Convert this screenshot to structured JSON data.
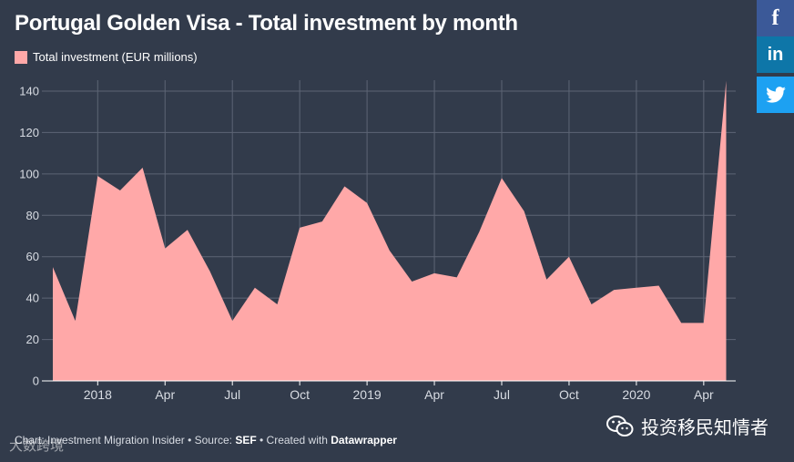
{
  "colors": {
    "background": "#323b4b",
    "fill": "#ffa8a8",
    "grid": "#5d6575",
    "axis_text": "#d8dce3"
  },
  "chart_data": {
    "type": "area",
    "title": "Portugal Golden Visa - Total investment by month",
    "legend": [
      "Total investment (EUR millions)"
    ],
    "xlabel": "",
    "ylabel": "",
    "ylim": [
      0,
      140
    ],
    "yticks": [
      0,
      20,
      40,
      60,
      80,
      100,
      120,
      140
    ],
    "xticks": [
      {
        "index": 2,
        "label": "2018"
      },
      {
        "index": 5,
        "label": "Apr"
      },
      {
        "index": 8,
        "label": "Jul"
      },
      {
        "index": 11,
        "label": "Oct"
      },
      {
        "index": 14,
        "label": "2019"
      },
      {
        "index": 17,
        "label": "Apr"
      },
      {
        "index": 20,
        "label": "Jul"
      },
      {
        "index": 23,
        "label": "Oct"
      },
      {
        "index": 26,
        "label": "2020"
      },
      {
        "index": 29,
        "label": "Apr"
      }
    ],
    "series": [
      {
        "name": "Total investment (EUR millions)",
        "values": [
          55,
          29,
          99,
          92,
          103,
          64,
          73,
          53,
          29,
          45,
          37,
          74,
          77,
          94,
          86,
          63,
          48,
          52,
          50,
          72,
          98,
          82,
          49,
          60,
          37,
          44,
          45,
          46,
          28,
          28,
          145
        ]
      }
    ]
  },
  "social": {
    "facebook_label": "f",
    "linkedin_label": "in",
    "twitter_label": "twitter-bird"
  },
  "footer": {
    "chart_prefix": "Chart: ",
    "chart_author": "Investment Migration Insider",
    "source_prefix": " • Source: ",
    "source": "SEF",
    "created_prefix": " • Created with ",
    "tool": "Datawrapper"
  },
  "watermarks": {
    "left": "大数跨境",
    "wechat_account": "投资移民知情者"
  }
}
